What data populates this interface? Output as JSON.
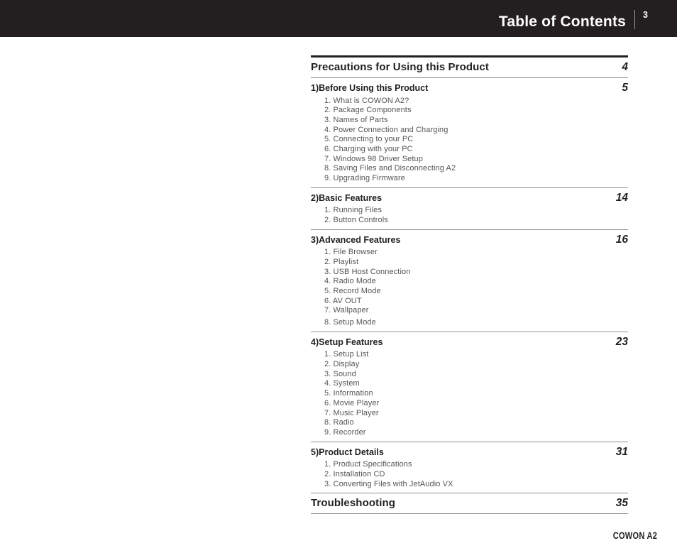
{
  "header": {
    "title": "Table of Contents",
    "page_number": "3"
  },
  "footer": {
    "brand": "COWON A2"
  },
  "colors": {
    "header_bg": "#231f20",
    "heading_text": "#231f20",
    "item_text": "#545559",
    "rule_thin": "#8f9194",
    "rule_thick": "#231f20"
  },
  "toc": {
    "sections": [
      {
        "type": "major",
        "label": "Precautions for Using this Product",
        "page": "4",
        "items": []
      },
      {
        "type": "sub",
        "label": "1)Before Using this Product",
        "page": "5",
        "items": [
          "1. What is COWON A2?",
          "2. Package Components",
          "3. Names of Parts",
          "4. Power Connection and Charging",
          "5. Connecting to your PC",
          "6. Charging with your PC",
          "7. Windows 98 Driver Setup",
          "8. Saving Files and Disconnecting A2",
          "9. Upgrading Firmware"
        ]
      },
      {
        "type": "sub",
        "label": "2)Basic Features",
        "page": "14",
        "items": [
          "1. Running Files",
          "2. Button Controls"
        ]
      },
      {
        "type": "sub",
        "label": "3)Advanced Features",
        "page": "16",
        "items": [
          "1. File Browser",
          "2. Playlist",
          "3. USB Host Connection",
          "4. Radio Mode",
          "5. Record Mode",
          "6. AV OUT",
          "7. Wallpaper",
          "8. Setup Mode"
        ]
      },
      {
        "type": "sub",
        "label": "4)Setup Features",
        "page": "23",
        "items": [
          "1. Setup List",
          "2. Display",
          "3. Sound",
          "4. System",
          "5. Information",
          "6. Movie Player",
          "7. Music Player",
          "8. Radio",
          "9. Recorder"
        ]
      },
      {
        "type": "sub",
        "label": "5)Product Details",
        "page": "31",
        "items": [
          "1. Product Specifications",
          "2. Installation CD",
          "3. Converting Files with JetAudio VX"
        ]
      },
      {
        "type": "major",
        "label": "Troubleshooting",
        "page": "35",
        "items": []
      }
    ]
  }
}
